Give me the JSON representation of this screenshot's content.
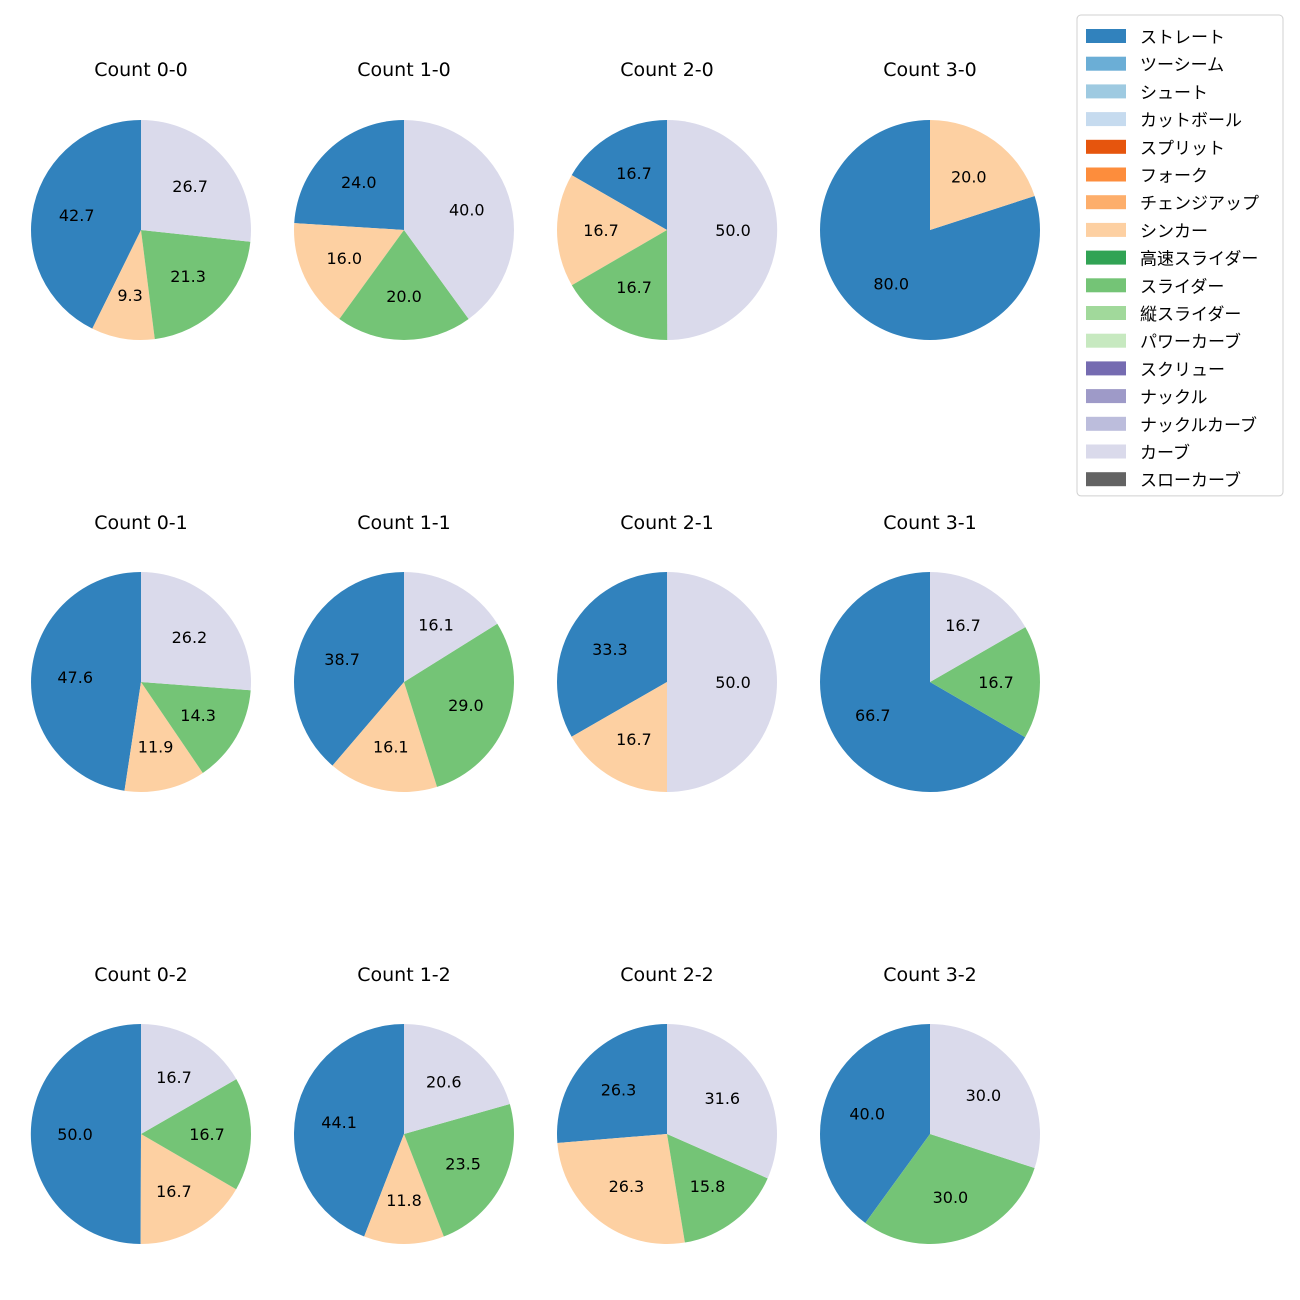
{
  "chart_data": {
    "type": "pie",
    "start_angle": "90 deg, counter-clockwise from top",
    "legend": {
      "placement": "top-right",
      "entries": [
        {
          "name": "ストレート",
          "color": "#3182bd"
        },
        {
          "name": "ツーシーム",
          "color": "#6baed6"
        },
        {
          "name": "シュート",
          "color": "#9ecae1"
        },
        {
          "name": "カットボール",
          "color": "#c6dbef"
        },
        {
          "name": "スプリット",
          "color": "#e6550d"
        },
        {
          "name": "フォーク",
          "color": "#fd8d3c"
        },
        {
          "name": "チェンジアップ",
          "color": "#fdae6b"
        },
        {
          "name": "シンカー",
          "color": "#fdd0a2"
        },
        {
          "name": "高速スライダー",
          "color": "#31a354"
        },
        {
          "name": "スライダー",
          "color": "#74c476"
        },
        {
          "name": "縦スライダー",
          "color": "#a1d99b"
        },
        {
          "name": "パワーカーブ",
          "color": "#c7e9c0"
        },
        {
          "name": "スクリュー",
          "color": "#756bb1"
        },
        {
          "name": "ナックル",
          "color": "#9e9ac8"
        },
        {
          "name": "ナックルカーブ",
          "color": "#bcbddc"
        },
        {
          "name": "カーブ",
          "color": "#dadaeb"
        },
        {
          "name": "スローカーブ",
          "color": "#636363"
        }
      ]
    },
    "charts": [
      {
        "title": "Count 0-0",
        "slices": [
          {
            "name": "ストレート",
            "value": 42.7
          },
          {
            "name": "シンカー",
            "value": 9.3
          },
          {
            "name": "スライダー",
            "value": 21.3
          },
          {
            "name": "カーブ",
            "value": 26.7
          }
        ]
      },
      {
        "title": "Count 1-0",
        "slices": [
          {
            "name": "ストレート",
            "value": 24.0
          },
          {
            "name": "シンカー",
            "value": 16.0
          },
          {
            "name": "スライダー",
            "value": 20.0
          },
          {
            "name": "カーブ",
            "value": 40.0
          }
        ]
      },
      {
        "title": "Count 2-0",
        "slices": [
          {
            "name": "ストレート",
            "value": 16.7
          },
          {
            "name": "シンカー",
            "value": 16.7
          },
          {
            "name": "スライダー",
            "value": 16.7
          },
          {
            "name": "カーブ",
            "value": 50.0
          }
        ]
      },
      {
        "title": "Count 3-0",
        "slices": [
          {
            "name": "ストレート",
            "value": 80.0
          },
          {
            "name": "シンカー",
            "value": 20.0
          }
        ]
      },
      {
        "title": "Count 0-1",
        "slices": [
          {
            "name": "ストレート",
            "value": 47.6
          },
          {
            "name": "シンカー",
            "value": 11.9
          },
          {
            "name": "スライダー",
            "value": 14.3
          },
          {
            "name": "カーブ",
            "value": 26.2
          }
        ]
      },
      {
        "title": "Count 1-1",
        "slices": [
          {
            "name": "ストレート",
            "value": 38.7
          },
          {
            "name": "シンカー",
            "value": 16.1
          },
          {
            "name": "スライダー",
            "value": 29.0
          },
          {
            "name": "カーブ",
            "value": 16.1
          }
        ]
      },
      {
        "title": "Count 2-1",
        "slices": [
          {
            "name": "ストレート",
            "value": 33.3
          },
          {
            "name": "シンカー",
            "value": 16.7
          },
          {
            "name": "カーブ",
            "value": 50.0
          }
        ]
      },
      {
        "title": "Count 3-1",
        "slices": [
          {
            "name": "ストレート",
            "value": 66.7
          },
          {
            "name": "スライダー",
            "value": 16.7
          },
          {
            "name": "カーブ",
            "value": 16.7
          }
        ]
      },
      {
        "title": "Count 0-2",
        "slices": [
          {
            "name": "ストレート",
            "value": 50.0
          },
          {
            "name": "シンカー",
            "value": 16.7
          },
          {
            "name": "スライダー",
            "value": 16.7
          },
          {
            "name": "カーブ",
            "value": 16.7
          }
        ]
      },
      {
        "title": "Count 1-2",
        "slices": [
          {
            "name": "ストレート",
            "value": 44.1
          },
          {
            "name": "シンカー",
            "value": 11.8
          },
          {
            "name": "スライダー",
            "value": 23.5
          },
          {
            "name": "カーブ",
            "value": 20.6
          }
        ]
      },
      {
        "title": "Count 2-2",
        "slices": [
          {
            "name": "ストレート",
            "value": 26.3
          },
          {
            "name": "シンカー",
            "value": 26.3
          },
          {
            "name": "スライダー",
            "value": 15.8
          },
          {
            "name": "カーブ",
            "value": 31.6
          }
        ]
      },
      {
        "title": "Count 3-2",
        "slices": [
          {
            "name": "ストレート",
            "value": 40.0
          },
          {
            "name": "スライダー",
            "value": 30.0
          },
          {
            "name": "カーブ",
            "value": 30.0
          }
        ]
      }
    ]
  }
}
